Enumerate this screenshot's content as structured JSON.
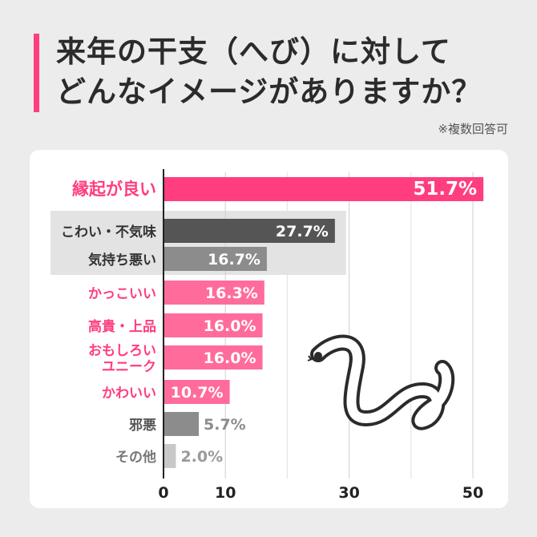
{
  "title": {
    "line1": "来年の干支（へび）に対して",
    "line2": "どんなイメージがありますか？"
  },
  "note": "※複数回答可",
  "colors": {
    "accent": "#ff3d7f",
    "highlight": "#ff3d7f",
    "pink": "#ff6c9b",
    "dark_gray": "#555555",
    "mid_gray": "#8c8c8c",
    "light_gray": "#c8c8c8",
    "band": "#e3e3e3"
  },
  "illustration": "snake-icon",
  "chart_data": {
    "type": "bar",
    "orientation": "horizontal",
    "xlim": [
      0,
      52
    ],
    "ticks": [
      0,
      10,
      30,
      50
    ],
    "grid": true,
    "series": [
      {
        "values": [
          51.7,
          27.7,
          16.7,
          16.3,
          16.0,
          16.0,
          10.7,
          5.7,
          2.0
        ]
      }
    ],
    "categories": [
      {
        "label": [
          "縁起が良い"
        ],
        "value_label": "51.7%",
        "style": "highlight"
      },
      {
        "label": [
          "こわい・不気味"
        ],
        "value_label": "27.7%",
        "style": "dark"
      },
      {
        "label": [
          "気持ち悪い"
        ],
        "value_label": "16.7%",
        "style": "mid"
      },
      {
        "label": [
          "かっこいい"
        ],
        "value_label": "16.3%",
        "style": "pink"
      },
      {
        "label": [
          "高貴・上品"
        ],
        "value_label": "16.0%",
        "style": "pink"
      },
      {
        "label": [
          "おもしろい",
          "ユニーク"
        ],
        "value_label": "16.0%",
        "style": "pink"
      },
      {
        "label": [
          "かわいい"
        ],
        "value_label": "10.7%",
        "style": "pink"
      },
      {
        "label": [
          "邪悪"
        ],
        "value_label": "5.7%",
        "style": "gray"
      },
      {
        "label": [
          "その他"
        ],
        "value_label": "2.0%",
        "style": "light"
      }
    ]
  }
}
